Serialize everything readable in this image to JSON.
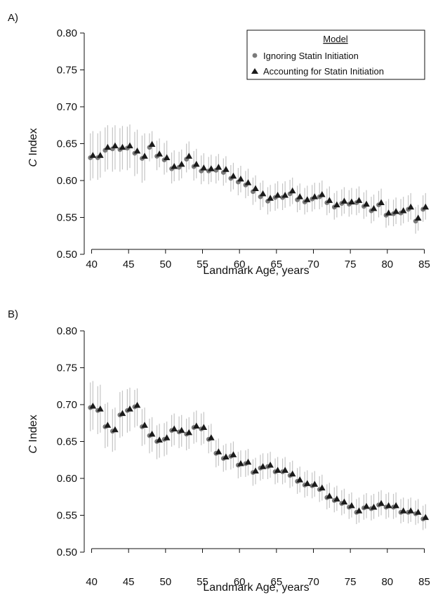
{
  "colors": {
    "circle": "#7a7a7a",
    "triangle": "#1a1a1a",
    "errorbar": "#c4c4c4",
    "axis": "#111111"
  },
  "legend": {
    "title": "Model",
    "items": [
      {
        "label": "Ignoring Statin Initiation",
        "marker": "circle"
      },
      {
        "label": "Accounting for Statin Initiation",
        "marker": "triangle"
      }
    ]
  },
  "chart_data": [
    {
      "panel_label": "A)",
      "type": "scatter",
      "xlabel": "Landmark Age, years",
      "ylabel_italic": "C",
      "ylabel_rest": " Index",
      "xlim": [
        39,
        86
      ],
      "ylim": [
        0.5,
        0.8
      ],
      "x_ticks": [
        "40",
        "45",
        "50",
        "55",
        "60",
        "65",
        "70",
        "75",
        "80",
        "85"
      ],
      "y_ticks": [
        "0.50",
        "0.55",
        "0.60",
        "0.65",
        "0.70",
        "0.75",
        "0.80"
      ],
      "legend_position": "top-right",
      "error_bars": "vertical, ±0.02 to ±0.035 around each estimate",
      "x": [
        40,
        41,
        42,
        43,
        44,
        45,
        46,
        47,
        48,
        49,
        50,
        51,
        52,
        53,
        54,
        55,
        56,
        57,
        58,
        59,
        60,
        61,
        62,
        63,
        64,
        65,
        66,
        67,
        68,
        69,
        70,
        71,
        72,
        73,
        74,
        75,
        76,
        77,
        78,
        79,
        80,
        81,
        82,
        83,
        84,
        85
      ],
      "series": [
        {
          "name": "Ignoring Statin Initiation",
          "marker": "circle",
          "values": [
            0.631,
            0.631,
            0.641,
            0.643,
            0.642,
            0.644,
            0.637,
            0.63,
            0.645,
            0.633,
            0.628,
            0.616,
            0.618,
            0.629,
            0.619,
            0.613,
            0.613,
            0.614,
            0.611,
            0.603,
            0.598,
            0.594,
            0.585,
            0.578,
            0.572,
            0.577,
            0.577,
            0.582,
            0.574,
            0.571,
            0.575,
            0.578,
            0.57,
            0.564,
            0.569,
            0.568,
            0.57,
            0.565,
            0.559,
            0.567,
            0.553,
            0.555,
            0.556,
            0.561,
            0.545,
            0.561
          ],
          "lower": [
            0.6,
            0.601,
            0.612,
            0.612,
            0.612,
            0.614,
            0.606,
            0.597,
            0.626,
            0.614,
            0.608,
            0.596,
            0.6,
            0.611,
            0.6,
            0.595,
            0.595,
            0.596,
            0.593,
            0.585,
            0.58,
            0.576,
            0.567,
            0.56,
            0.554,
            0.559,
            0.56,
            0.565,
            0.557,
            0.554,
            0.558,
            0.561,
            0.553,
            0.547,
            0.552,
            0.551,
            0.553,
            0.548,
            0.542,
            0.55,
            0.536,
            0.538,
            0.539,
            0.544,
            0.528,
            0.544
          ],
          "upper": [
            0.664,
            0.664,
            0.672,
            0.672,
            0.671,
            0.673,
            0.666,
            0.661,
            0.664,
            0.654,
            0.651,
            0.638,
            0.639,
            0.65,
            0.64,
            0.634,
            0.632,
            0.633,
            0.63,
            0.621,
            0.617,
            0.613,
            0.604,
            0.597,
            0.591,
            0.596,
            0.596,
            0.601,
            0.593,
            0.59,
            0.594,
            0.597,
            0.589,
            0.583,
            0.588,
            0.587,
            0.589,
            0.584,
            0.578,
            0.586,
            0.572,
            0.574,
            0.575,
            0.58,
            0.564,
            0.58
          ]
        },
        {
          "name": "Accounting for Statin Initiation",
          "marker": "triangle",
          "values": [
            0.634,
            0.634,
            0.645,
            0.647,
            0.645,
            0.647,
            0.64,
            0.633,
            0.649,
            0.636,
            0.631,
            0.619,
            0.622,
            0.633,
            0.622,
            0.617,
            0.616,
            0.618,
            0.615,
            0.606,
            0.602,
            0.597,
            0.589,
            0.582,
            0.576,
            0.58,
            0.58,
            0.586,
            0.578,
            0.574,
            0.578,
            0.581,
            0.573,
            0.567,
            0.572,
            0.571,
            0.573,
            0.568,
            0.562,
            0.57,
            0.556,
            0.558,
            0.559,
            0.564,
            0.549,
            0.564
          ],
          "lower": [
            0.603,
            0.604,
            0.615,
            0.615,
            0.615,
            0.617,
            0.609,
            0.6,
            0.63,
            0.618,
            0.611,
            0.599,
            0.603,
            0.615,
            0.603,
            0.599,
            0.598,
            0.6,
            0.597,
            0.588,
            0.584,
            0.579,
            0.571,
            0.564,
            0.558,
            0.562,
            0.563,
            0.568,
            0.56,
            0.557,
            0.561,
            0.564,
            0.556,
            0.55,
            0.555,
            0.554,
            0.556,
            0.551,
            0.545,
            0.553,
            0.539,
            0.541,
            0.542,
            0.547,
            0.532,
            0.547
          ],
          "upper": [
            0.667,
            0.667,
            0.675,
            0.675,
            0.674,
            0.676,
            0.669,
            0.664,
            0.667,
            0.657,
            0.654,
            0.641,
            0.642,
            0.653,
            0.643,
            0.637,
            0.635,
            0.636,
            0.633,
            0.624,
            0.62,
            0.616,
            0.607,
            0.6,
            0.594,
            0.599,
            0.599,
            0.604,
            0.596,
            0.593,
            0.597,
            0.6,
            0.592,
            0.586,
            0.591,
            0.59,
            0.592,
            0.587,
            0.581,
            0.589,
            0.575,
            0.577,
            0.578,
            0.583,
            0.567,
            0.583
          ]
        }
      ]
    },
    {
      "panel_label": "B)",
      "type": "scatter",
      "xlabel": "Landmark Age, years",
      "ylabel_italic": "C",
      "ylabel_rest": " Index",
      "xlim": [
        39,
        86
      ],
      "ylim": [
        0.5,
        0.8
      ],
      "x_ticks": [
        "40",
        "45",
        "50",
        "55",
        "60",
        "65",
        "70",
        "75",
        "80",
        "85"
      ],
      "y_ticks": [
        "0.50",
        "0.55",
        "0.60",
        "0.65",
        "0.70",
        "0.75",
        "0.80"
      ],
      "legend_position": "none",
      "error_bars": "vertical, ±0.02 to ±0.035 around each estimate",
      "x": [
        40,
        41,
        42,
        43,
        44,
        45,
        46,
        47,
        48,
        49,
        50,
        51,
        52,
        53,
        54,
        55,
        56,
        57,
        58,
        59,
        60,
        61,
        62,
        63,
        64,
        65,
        66,
        67,
        68,
        69,
        70,
        71,
        72,
        73,
        74,
        75,
        76,
        77,
        78,
        79,
        80,
        81,
        82,
        83,
        84,
        85
      ],
      "series": [
        {
          "name": "Ignoring Statin Initiation",
          "marker": "circle",
          "values": [
            0.696,
            0.692,
            0.67,
            0.664,
            0.686,
            0.692,
            0.697,
            0.67,
            0.658,
            0.65,
            0.653,
            0.665,
            0.663,
            0.66,
            0.669,
            0.667,
            0.653,
            0.634,
            0.627,
            0.63,
            0.618,
            0.62,
            0.608,
            0.614,
            0.616,
            0.609,
            0.609,
            0.604,
            0.596,
            0.591,
            0.59,
            0.585,
            0.574,
            0.57,
            0.566,
            0.561,
            0.554,
            0.56,
            0.559,
            0.564,
            0.561,
            0.561,
            0.554,
            0.554,
            0.552,
            0.545
          ],
          "lower": [
            0.664,
            0.66,
            0.641,
            0.636,
            0.655,
            0.662,
            0.669,
            0.644,
            0.634,
            0.626,
            0.63,
            0.643,
            0.641,
            0.638,
            0.647,
            0.645,
            0.634,
            0.615,
            0.609,
            0.612,
            0.6,
            0.602,
            0.59,
            0.597,
            0.599,
            0.592,
            0.592,
            0.587,
            0.579,
            0.574,
            0.573,
            0.568,
            0.558,
            0.554,
            0.55,
            0.545,
            0.538,
            0.544,
            0.543,
            0.548,
            0.545,
            0.545,
            0.539,
            0.539,
            0.537,
            0.53
          ],
          "upper": [
            0.73,
            0.725,
            0.701,
            0.694,
            0.717,
            0.721,
            0.72,
            0.694,
            0.681,
            0.672,
            0.675,
            0.686,
            0.684,
            0.681,
            0.69,
            0.688,
            0.672,
            0.652,
            0.645,
            0.648,
            0.636,
            0.638,
            0.626,
            0.632,
            0.634,
            0.627,
            0.627,
            0.622,
            0.614,
            0.609,
            0.608,
            0.603,
            0.592,
            0.588,
            0.584,
            0.579,
            0.572,
            0.578,
            0.577,
            0.582,
            0.579,
            0.579,
            0.572,
            0.572,
            0.57,
            0.563
          ]
        },
        {
          "name": "Accounting for Statin Initiation",
          "marker": "triangle",
          "values": [
            0.698,
            0.694,
            0.672,
            0.666,
            0.688,
            0.694,
            0.699,
            0.672,
            0.66,
            0.652,
            0.655,
            0.667,
            0.665,
            0.662,
            0.671,
            0.669,
            0.655,
            0.636,
            0.629,
            0.632,
            0.62,
            0.622,
            0.61,
            0.616,
            0.618,
            0.611,
            0.611,
            0.606,
            0.598,
            0.593,
            0.592,
            0.587,
            0.576,
            0.572,
            0.568,
            0.563,
            0.556,
            0.562,
            0.561,
            0.566,
            0.563,
            0.563,
            0.556,
            0.556,
            0.554,
            0.547
          ],
          "lower": [
            0.666,
            0.662,
            0.643,
            0.638,
            0.657,
            0.664,
            0.671,
            0.646,
            0.636,
            0.628,
            0.632,
            0.645,
            0.643,
            0.64,
            0.649,
            0.647,
            0.636,
            0.617,
            0.611,
            0.614,
            0.602,
            0.604,
            0.592,
            0.599,
            0.601,
            0.594,
            0.594,
            0.589,
            0.581,
            0.576,
            0.575,
            0.57,
            0.56,
            0.556,
            0.552,
            0.547,
            0.54,
            0.546,
            0.545,
            0.55,
            0.547,
            0.547,
            0.541,
            0.541,
            0.539,
            0.532
          ],
          "upper": [
            0.732,
            0.727,
            0.703,
            0.696,
            0.719,
            0.723,
            0.722,
            0.696,
            0.683,
            0.674,
            0.677,
            0.688,
            0.686,
            0.683,
            0.692,
            0.69,
            0.674,
            0.654,
            0.647,
            0.65,
            0.638,
            0.64,
            0.628,
            0.634,
            0.636,
            0.629,
            0.629,
            0.624,
            0.616,
            0.611,
            0.61,
            0.605,
            0.594,
            0.59,
            0.586,
            0.581,
            0.574,
            0.58,
            0.579,
            0.584,
            0.581,
            0.581,
            0.574,
            0.574,
            0.572,
            0.565
          ]
        }
      ]
    }
  ]
}
